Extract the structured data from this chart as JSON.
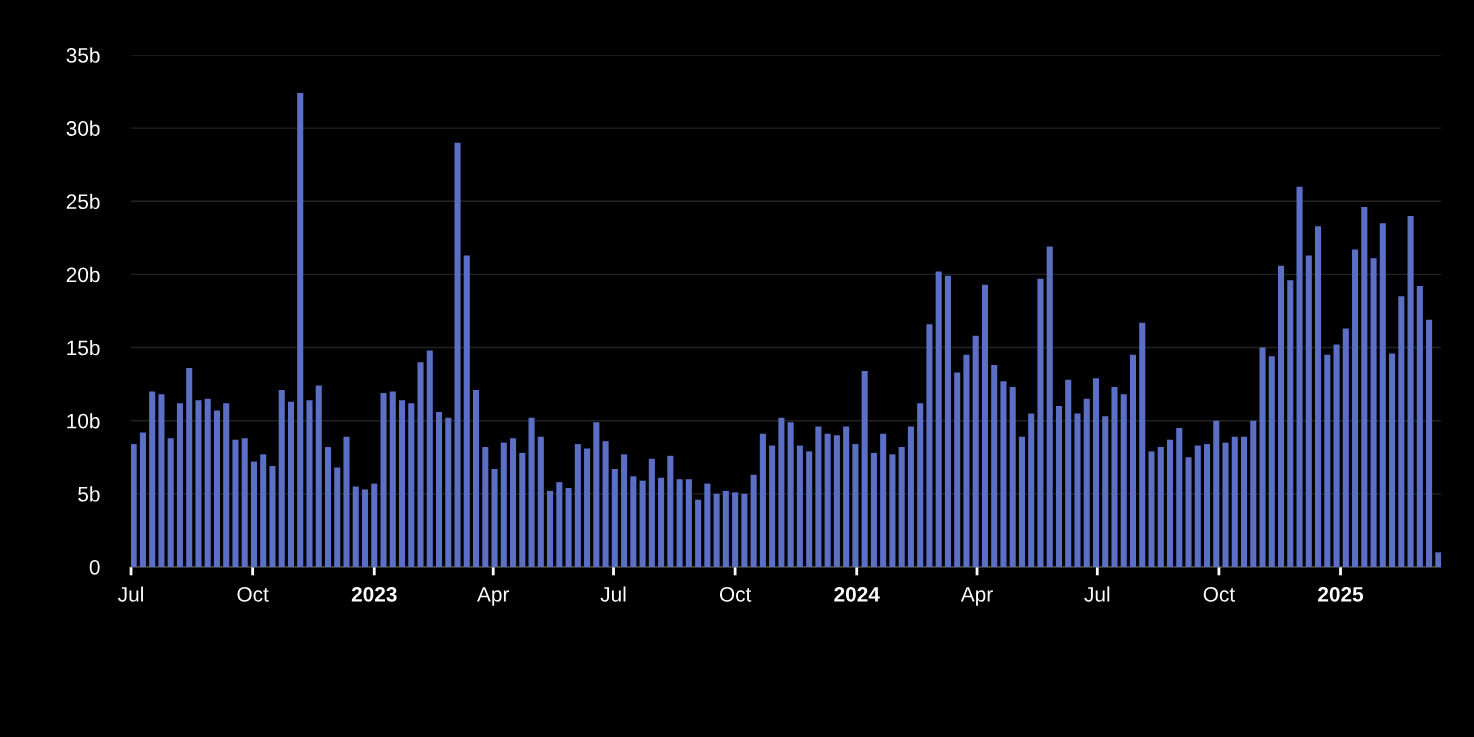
{
  "chart_data": {
    "type": "bar",
    "color": "#5b6fc4",
    "x": [
      "2022-07-03",
      "2022-07-10",
      "2022-07-17",
      "2022-07-24",
      "2022-07-31",
      "2022-08-07",
      "2022-08-14",
      "2022-08-21",
      "2022-08-28",
      "2022-09-04",
      "2022-09-11",
      "2022-09-18",
      "2022-09-25",
      "2022-10-02",
      "2022-10-09",
      "2022-10-16",
      "2022-10-23",
      "2022-10-30",
      "2022-11-06",
      "2022-11-13",
      "2022-11-20",
      "2022-11-27",
      "2022-12-04",
      "2022-12-11",
      "2022-12-18",
      "2022-12-25",
      "2023-01-01",
      "2023-01-08",
      "2023-01-15",
      "2023-01-22",
      "2023-01-29",
      "2023-02-05",
      "2023-02-12",
      "2023-02-19",
      "2023-02-26",
      "2023-03-05",
      "2023-03-12",
      "2023-03-19",
      "2023-03-26",
      "2023-04-02",
      "2023-04-09",
      "2023-04-16",
      "2023-04-23",
      "2023-04-30",
      "2023-05-07",
      "2023-05-14",
      "2023-05-21",
      "2023-05-28",
      "2023-06-04",
      "2023-06-11",
      "2023-06-18",
      "2023-06-25",
      "2023-07-02",
      "2023-07-09",
      "2023-07-16",
      "2023-07-23",
      "2023-07-30",
      "2023-08-06",
      "2023-08-13",
      "2023-08-20",
      "2023-08-27",
      "2023-09-03",
      "2023-09-10",
      "2023-09-17",
      "2023-09-24",
      "2023-10-01",
      "2023-10-08",
      "2023-10-15",
      "2023-10-22",
      "2023-10-29",
      "2023-11-05",
      "2023-11-12",
      "2023-11-19",
      "2023-11-26",
      "2023-12-03",
      "2023-12-10",
      "2023-12-17",
      "2023-12-24",
      "2023-12-31",
      "2024-01-07",
      "2024-01-14",
      "2024-01-21",
      "2024-01-28",
      "2024-02-04",
      "2024-02-11",
      "2024-02-18",
      "2024-02-25",
      "2024-03-03",
      "2024-03-10",
      "2024-03-17",
      "2024-03-24",
      "2024-03-31",
      "2024-04-07",
      "2024-04-14",
      "2024-04-21",
      "2024-04-28",
      "2024-05-05",
      "2024-05-12",
      "2024-05-19",
      "2024-05-26",
      "2024-06-02",
      "2024-06-09",
      "2024-06-16",
      "2024-06-23",
      "2024-06-30",
      "2024-07-07",
      "2024-07-14",
      "2024-07-21",
      "2024-07-28",
      "2024-08-04",
      "2024-08-11",
      "2024-08-18",
      "2024-08-25",
      "2024-09-01",
      "2024-09-08",
      "2024-09-15",
      "2024-09-22",
      "2024-09-29",
      "2024-10-06",
      "2024-10-13",
      "2024-10-20",
      "2024-10-27",
      "2024-11-03",
      "2024-11-10",
      "2024-11-17",
      "2024-11-24",
      "2024-12-01",
      "2024-12-08",
      "2024-12-15",
      "2024-12-22",
      "2024-12-29",
      "2025-01-05",
      "2025-01-12",
      "2025-01-19",
      "2025-01-26",
      "2025-02-02",
      "2025-02-09",
      "2025-02-16",
      "2025-02-23",
      "2025-03-02",
      "2025-03-09",
      "2025-03-16"
    ],
    "values": [
      8.4,
      9.2,
      12.0,
      11.8,
      8.8,
      11.2,
      13.6,
      11.4,
      11.5,
      10.7,
      11.2,
      8.7,
      8.8,
      7.2,
      7.7,
      6.9,
      12.1,
      11.3,
      32.4,
      11.4,
      12.4,
      8.2,
      6.8,
      8.9,
      5.5,
      5.3,
      5.7,
      11.9,
      12.0,
      11.4,
      11.2,
      14.0,
      14.8,
      10.6,
      10.2,
      29.0,
      21.3,
      12.1,
      8.2,
      6.7,
      8.5,
      8.8,
      7.8,
      10.2,
      8.9,
      5.2,
      5.8,
      5.4,
      8.4,
      8.1,
      9.9,
      8.6,
      6.7,
      7.7,
      6.2,
      5.9,
      7.4,
      6.1,
      7.6,
      6.0,
      6.0,
      4.6,
      5.7,
      5.0,
      5.2,
      5.1,
      5.0,
      6.3,
      9.1,
      8.3,
      10.2,
      9.9,
      8.3,
      7.9,
      9.6,
      9.1,
      9.0,
      9.6,
      8.4,
      13.4,
      7.8,
      9.1,
      7.7,
      8.2,
      9.6,
      11.2,
      16.6,
      20.2,
      19.9,
      13.3,
      14.5,
      15.8,
      19.3,
      13.8,
      12.7,
      12.3,
      8.9,
      10.5,
      19.7,
      21.9,
      11.0,
      12.8,
      10.5,
      11.5,
      12.9,
      10.3,
      12.3,
      11.8,
      14.5,
      16.7,
      7.9,
      8.2,
      8.7,
      9.5,
      7.5,
      8.3,
      8.4,
      10.0,
      8.5,
      8.9,
      8.9,
      10.0,
      15.0,
      14.4,
      20.6,
      19.6,
      26.0,
      21.3,
      23.3,
      14.5,
      15.2,
      16.3,
      21.7,
      24.6,
      21.1,
      23.5,
      14.6,
      18.5,
      24.0,
      19.2,
      16.9,
      1.0
    ],
    "xlim": [
      "2022-07-01",
      "2025-03-18"
    ],
    "xticks": [
      {
        "value": "2022-07-01",
        "label": "Jul"
      },
      {
        "value": "2022-10-01",
        "label": "Oct"
      },
      {
        "value": "2023-01-01",
        "label": "2023"
      },
      {
        "value": "2023-04-01",
        "label": "Apr"
      },
      {
        "value": "2023-07-01",
        "label": "Jul"
      },
      {
        "value": "2023-10-01",
        "label": "Oct"
      },
      {
        "value": "2024-01-01",
        "label": "2024"
      },
      {
        "value": "2024-04-01",
        "label": "Apr"
      },
      {
        "value": "2024-07-01",
        "label": "Jul"
      },
      {
        "value": "2024-10-01",
        "label": "Oct"
      },
      {
        "value": "2025-01-01",
        "label": "2025"
      }
    ],
    "ylim": [
      0,
      35
    ],
    "yticks": [
      {
        "value": 0,
        "label": "0"
      },
      {
        "value": 5,
        "label": "5b"
      },
      {
        "value": 10,
        "label": "10b"
      },
      {
        "value": 15,
        "label": "15b"
      },
      {
        "value": 20,
        "label": "20b"
      },
      {
        "value": 25,
        "label": "25b"
      },
      {
        "value": 30,
        "label": "30b"
      },
      {
        "value": 35,
        "label": "35b"
      }
    ],
    "grid": "y"
  }
}
